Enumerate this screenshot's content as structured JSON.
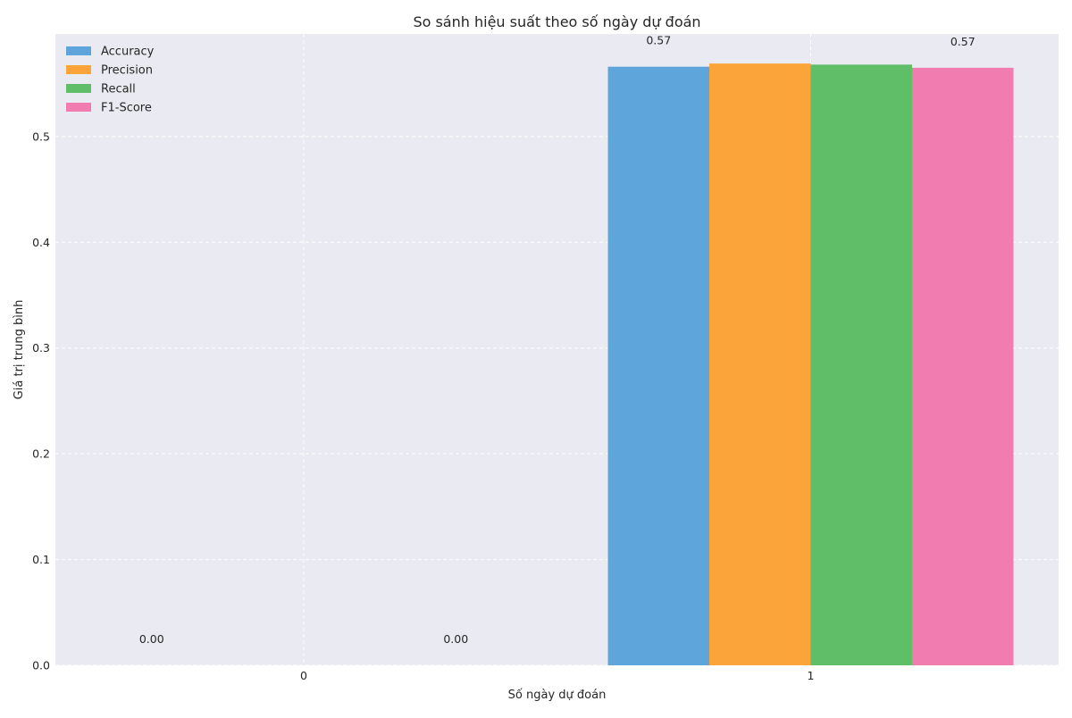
{
  "chart_data": {
    "type": "bar",
    "title": "So sánh hiệu suất theo số ngày dự đoán",
    "xlabel": "Số ngày dự đoán",
    "ylabel": "Giá trị trung bình",
    "categories": [
      "0",
      "1"
    ],
    "ylim": [
      0,
      0.597
    ],
    "yticks": [
      "0.0",
      "0.1",
      "0.2",
      "0.3",
      "0.4",
      "0.5"
    ],
    "grid": true,
    "legend_position": "top-left",
    "series": [
      {
        "name": "Accuracy",
        "color": "#5DA5DA",
        "values": [
          0,
          0.566
        ]
      },
      {
        "name": "Precision",
        "color": "#FAA43A",
        "values": [
          0,
          0.569
        ]
      },
      {
        "name": "Recall",
        "color": "#60BD68",
        "values": [
          0,
          0.568
        ]
      },
      {
        "name": "F1-Score",
        "color": "#F17CB0",
        "values": [
          0,
          0.565
        ]
      }
    ],
    "data_labels": [
      "0.00",
      "0.00",
      "0.57",
      "0.57"
    ]
  },
  "colors": {
    "plot_background": "#EAEAF2",
    "grid": "#FFFFFF"
  }
}
